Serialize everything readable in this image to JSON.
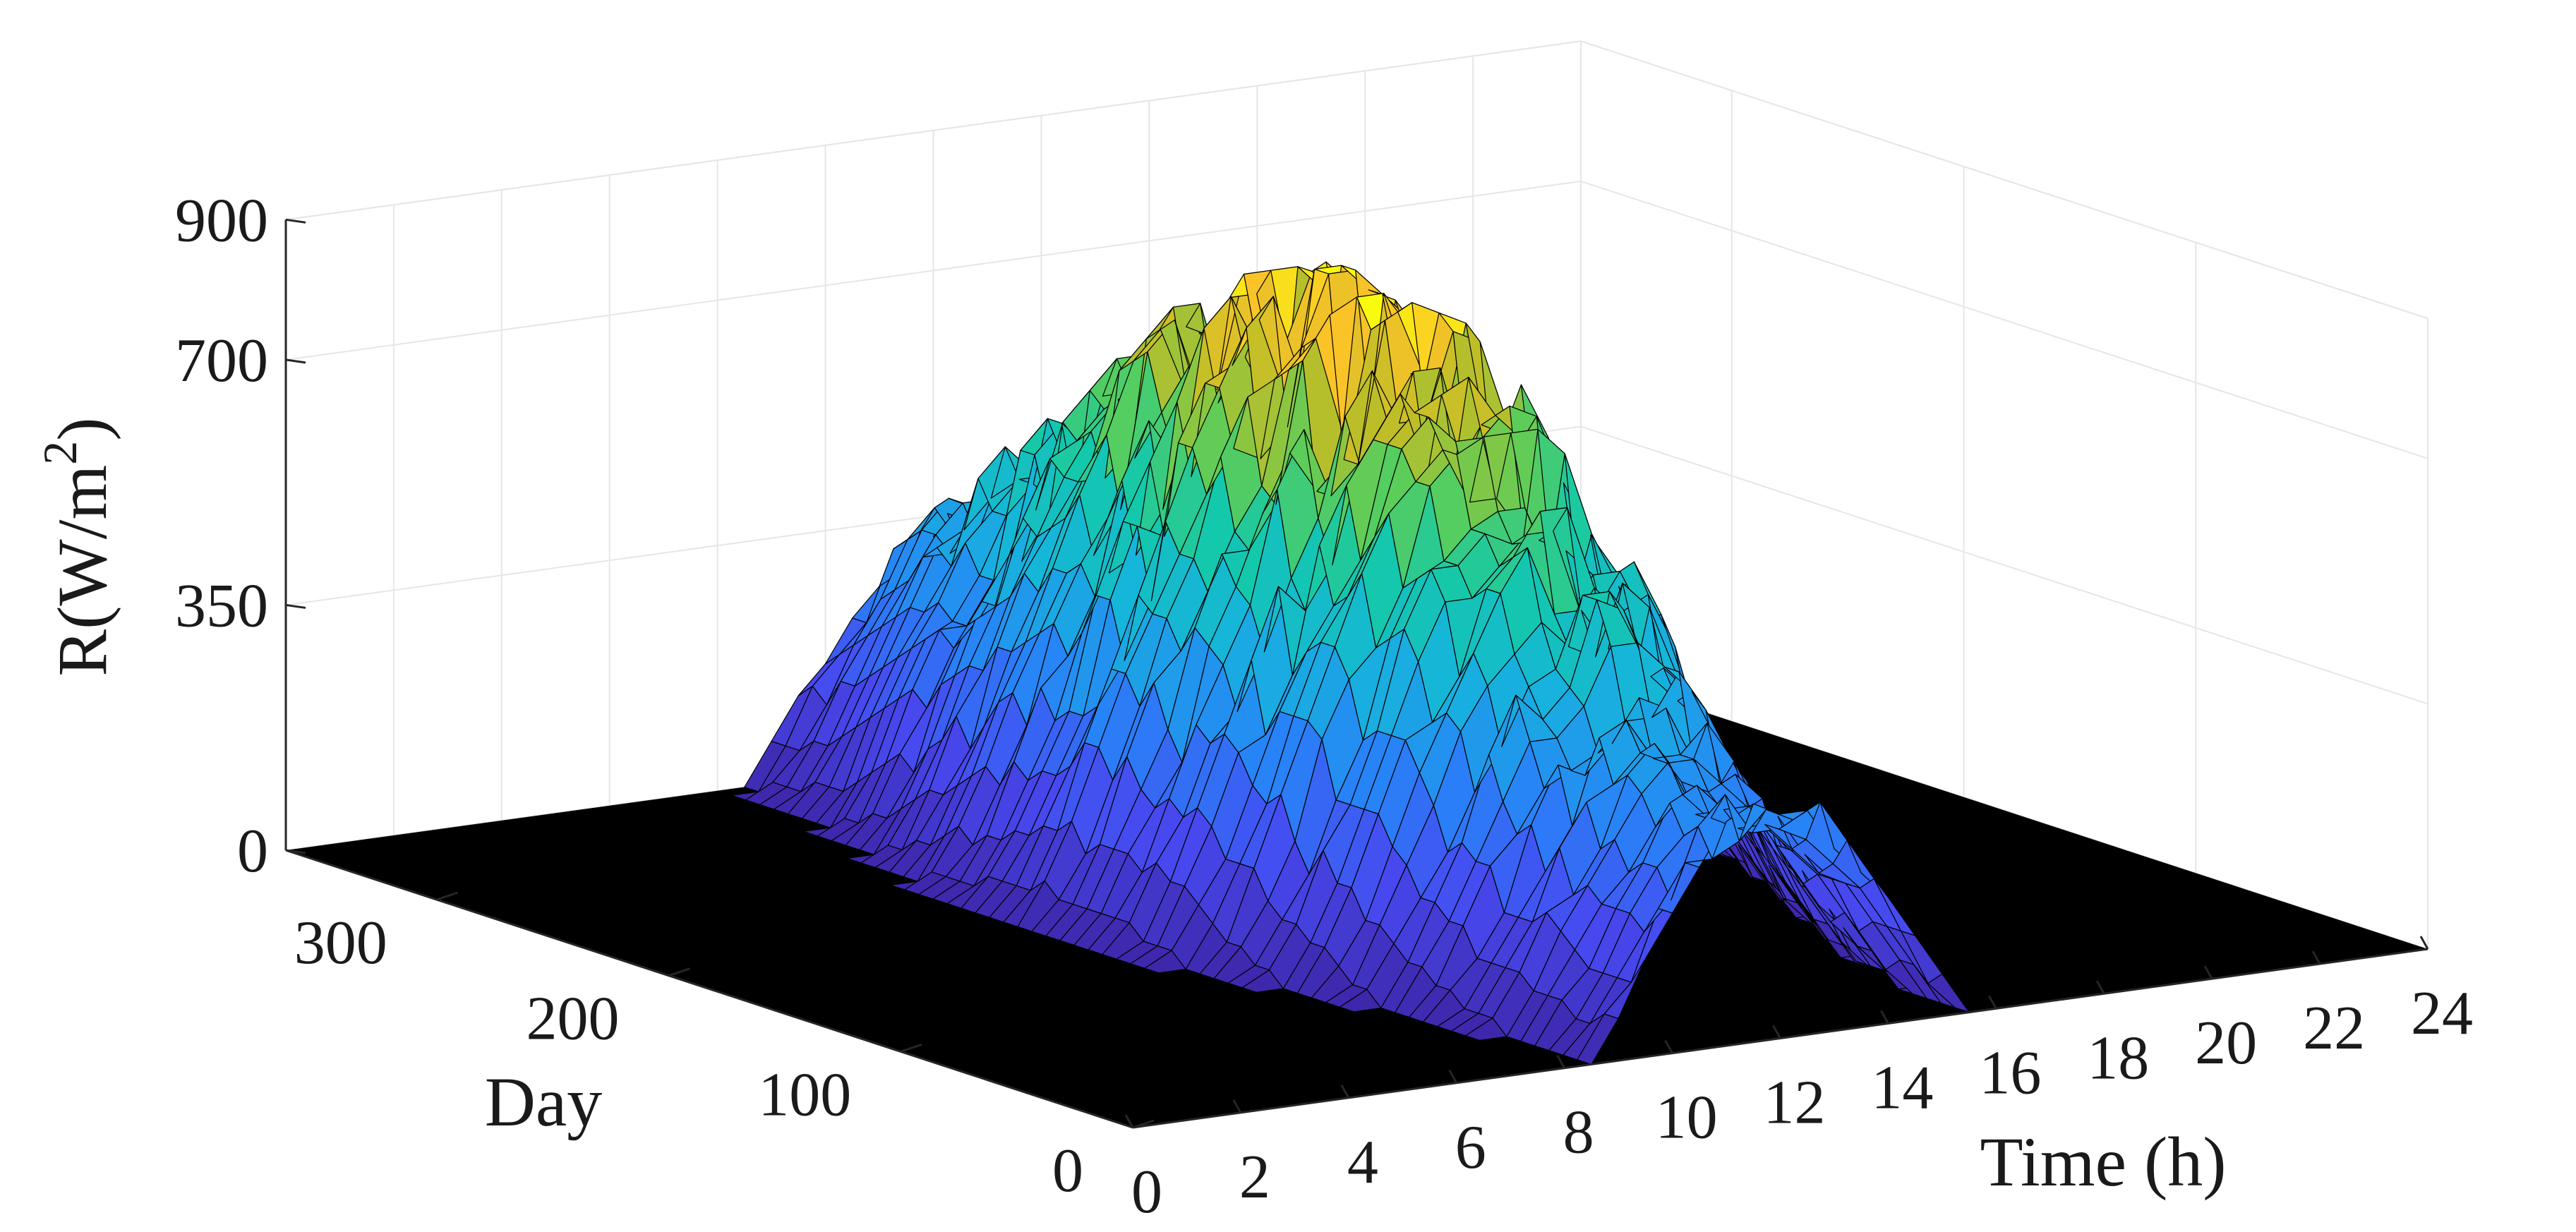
{
  "chart_data": {
    "type": "surface3d",
    "title": "",
    "zlabel": "R(W/m²)",
    "zlabel_base": "R(W/m",
    "zlabel_sup": "2",
    "zlabel_close": ")",
    "xlabel": "Time (h)",
    "ylabel": "Day",
    "xlim": [
      0,
      24
    ],
    "ylim": [
      0,
      365
    ],
    "zlim": [
      0,
      900
    ],
    "x_ticks": [
      "0",
      "2",
      "4",
      "6",
      "8",
      "10",
      "12",
      "14",
      "16",
      "18",
      "20",
      "22",
      "24"
    ],
    "x_tick_values": [
      0,
      2,
      4,
      6,
      8,
      10,
      12,
      14,
      16,
      18,
      20,
      22,
      24
    ],
    "y_ticks": [
      "0",
      "100",
      "200",
      "300"
    ],
    "y_tick_values": [
      0,
      100,
      200,
      300
    ],
    "z_ticks": [
      "0",
      "350",
      "700",
      "900"
    ],
    "z_tick_values": [
      0,
      350,
      700,
      900
    ],
    "grid": true,
    "colormap": "parula",
    "mesh_edge_color": "#000000",
    "sunrise_hour_range": [
      6.5,
      10
    ],
    "sunset_hour_range": [
      15.5,
      18.5
    ],
    "peak_irradiance": 840,
    "peak_day_range": [
      150,
      250
    ],
    "winter_peak": 330
  }
}
